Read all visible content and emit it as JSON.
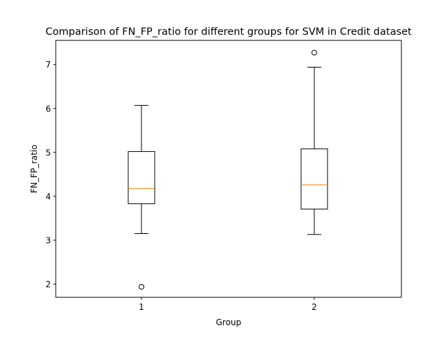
{
  "chart_data": {
    "type": "box",
    "title": "Comparison of FN_FP_ratio for different groups for SVM in Credit dataset",
    "xlabel": "Group",
    "ylabel": "FN_FP_ratio",
    "categories": [
      "1",
      "2"
    ],
    "ylim": [
      1.7,
      7.55
    ],
    "yticks": [
      2,
      3,
      4,
      5,
      6,
      7
    ],
    "grid": false,
    "boxes": [
      {
        "category": "1",
        "whisker_low": 3.15,
        "q1": 3.83,
        "median": 4.18,
        "q3": 5.02,
        "whisker_high": 6.07,
        "outliers": [
          1.94
        ]
      },
      {
        "category": "2",
        "whisker_low": 3.13,
        "q1": 3.71,
        "median": 4.26,
        "q3": 5.08,
        "whisker_high": 6.94,
        "outliers": [
          7.27
        ]
      }
    ],
    "colors": {
      "box": "#000000",
      "median": "#ff7f0e",
      "axes": "#000000"
    }
  }
}
